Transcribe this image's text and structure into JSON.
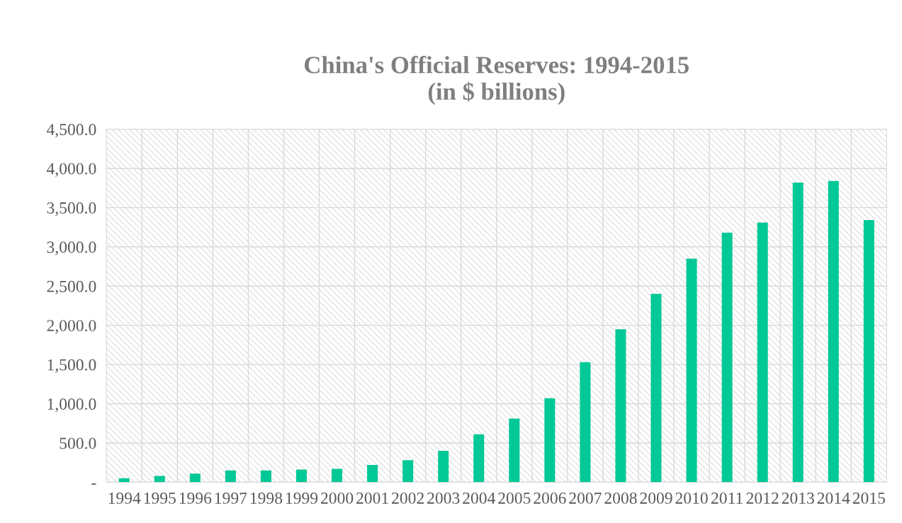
{
  "chart_data": {
    "type": "bar",
    "title": "China's Official Reserves: 1994-2015\n(in $ billions)",
    "categories": [
      "1994",
      "1995",
      "1996",
      "1997",
      "1998",
      "1999",
      "2000",
      "2001",
      "2002",
      "2003",
      "2004",
      "2005",
      "2006",
      "2007",
      "2008",
      "2009",
      "2010",
      "2011",
      "2012",
      "2013",
      "2014",
      "2015"
    ],
    "values": [
      50,
      80,
      110,
      150,
      150,
      160,
      170,
      220,
      280,
      400,
      610,
      810,
      1070,
      1530,
      1950,
      2400,
      2850,
      3180,
      3310,
      3820,
      3840,
      3340
    ],
    "color": "#00c896",
    "ylim": [
      0,
      4500
    ],
    "yticks": [
      {
        "value": 0,
        "label": "-"
      },
      {
        "value": 500,
        "label": "500.0"
      },
      {
        "value": 1000,
        "label": "1,000.0"
      },
      {
        "value": 1500,
        "label": "1,500.0"
      },
      {
        "value": 2000,
        "label": "2,000.0"
      },
      {
        "value": 2500,
        "label": "2,500.0"
      },
      {
        "value": 3000,
        "label": "3,000.0"
      },
      {
        "value": 3500,
        "label": "3,500.0"
      },
      {
        "value": 4000,
        "label": "4,000.0"
      },
      {
        "value": 4500,
        "label": "4,500.0"
      }
    ],
    "grid": true
  }
}
